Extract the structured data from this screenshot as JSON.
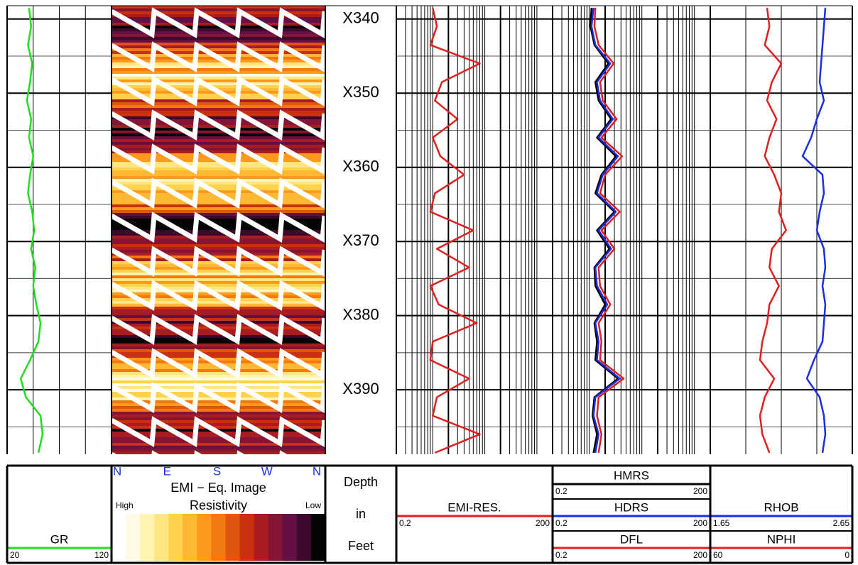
{
  "depth": {
    "header": [
      "Depth",
      "in",
      "Feet"
    ],
    "ylim": [
      338.2,
      398.7
    ],
    "yticks": [
      {
        "value": 340,
        "label": "X340"
      },
      {
        "value": 350,
        "label": "X350"
      },
      {
        "value": 360,
        "label": "X360"
      },
      {
        "value": 370,
        "label": "X370"
      },
      {
        "value": 380,
        "label": "X380"
      },
      {
        "value": 390,
        "label": "X390"
      }
    ],
    "samples": [
      338.5,
      341,
      343.5,
      346,
      348.5,
      351,
      353.5,
      356,
      358.5,
      361,
      363.5,
      366,
      368.5,
      371,
      373.5,
      376,
      378.5,
      381,
      383.5,
      386,
      388.5,
      391,
      393.5,
      396,
      398.5
    ]
  },
  "chart_data": [
    {
      "type": "line",
      "series": [
        {
          "name": "GR",
          "color": "#22dd22",
          "xlim": [
            20,
            120
          ],
          "values": [
            41,
            43,
            40,
            44,
            42,
            39,
            43,
            41,
            45,
            42,
            40,
            44,
            46,
            43,
            47,
            45,
            48,
            52,
            50,
            42,
            33,
            38,
            52,
            54,
            50
          ]
        }
      ]
    },
    {
      "type": "image",
      "title": "EMI − Eq. Image",
      "subtitle": "Resistivity",
      "azimuths": [
        "N",
        "E",
        "S",
        "W",
        "N"
      ],
      "high_label": "High",
      "low_label": "Low",
      "colors": [
        "#fffbe6",
        "#fff3b0",
        "#ffe680",
        "#ffd24d",
        "#ffb833",
        "#ff9a1f",
        "#f27a10",
        "#e0560c",
        "#c8320f",
        "#a81c22",
        "#861434",
        "#651044",
        "#3d0a2e",
        "#050505"
      ]
    },
    {
      "type": "line",
      "log": true,
      "series": [
        {
          "name": "EMI-RES.",
          "color": "#e02020",
          "xlim": [
            0.2,
            200
          ],
          "values": [
            1.0,
            1.2,
            0.9,
            8,
            1.5,
            1.1,
            3,
            1.0,
            1.4,
            4,
            1.1,
            0.9,
            6,
            1.2,
            5,
            0.9,
            1.3,
            7,
            1.0,
            0.9,
            5,
            1.2,
            1.0,
            8,
            1.1
          ]
        }
      ]
    },
    {
      "type": "line",
      "log": true,
      "series": [
        {
          "name": "HMRS",
          "color": "#000000",
          "xlim": [
            0.2,
            200
          ],
          "values": [
            1.1,
            1.05,
            1.25,
            2.3,
            1.3,
            1.5,
            2.6,
            1.4,
            3.2,
            1.7,
            1.3,
            3.0,
            1.4,
            2.4,
            1.25,
            1.3,
            2.0,
            1.25,
            1.4,
            1.3,
            3.5,
            1.25,
            1.15,
            1.4,
            1.2
          ]
        },
        {
          "name": "HDRS",
          "color": "#1a2ee0",
          "xlim": [
            0.2,
            200
          ],
          "values": [
            1.2,
            1.1,
            1.3,
            2.5,
            1.4,
            1.6,
            2.8,
            1.5,
            3.5,
            1.8,
            1.4,
            3.2,
            1.5,
            2.6,
            1.3,
            1.4,
            2.2,
            1.3,
            1.5,
            1.4,
            3.8,
            1.3,
            1.2,
            1.5,
            1.3
          ]
        },
        {
          "name": "DFL",
          "color": "#e02020",
          "xlim": [
            0.2,
            200
          ],
          "values": [
            1.3,
            1.25,
            1.5,
            2.9,
            1.6,
            1.8,
            3.3,
            1.7,
            4.2,
            2.0,
            1.6,
            3.8,
            1.7,
            3.0,
            1.5,
            1.6,
            2.5,
            1.5,
            1.7,
            1.6,
            4.5,
            1.5,
            1.4,
            1.7,
            1.5
          ]
        }
      ]
    },
    {
      "type": "line",
      "series": [
        {
          "name": "RHOB",
          "color": "#1a2ee0",
          "xlim": [
            1.65,
            2.65
          ],
          "values": [
            2.46,
            2.45,
            2.44,
            2.43,
            2.42,
            2.45,
            2.4,
            2.36,
            2.3,
            2.44,
            2.45,
            2.42,
            2.4,
            2.45,
            2.46,
            2.44,
            2.46,
            2.45,
            2.44,
            2.38,
            2.33,
            2.42,
            2.45,
            2.46,
            2.44
          ]
        },
        {
          "name": "NPHI",
          "color": "#e02020",
          "xlim": [
            60,
            0
          ],
          "values": [
            36,
            35,
            37,
            30,
            34,
            36,
            32,
            35,
            37,
            33,
            30,
            31,
            28,
            34,
            35,
            31,
            35,
            36,
            38,
            39,
            33,
            37,
            39,
            38,
            35
          ]
        }
      ]
    }
  ]
}
